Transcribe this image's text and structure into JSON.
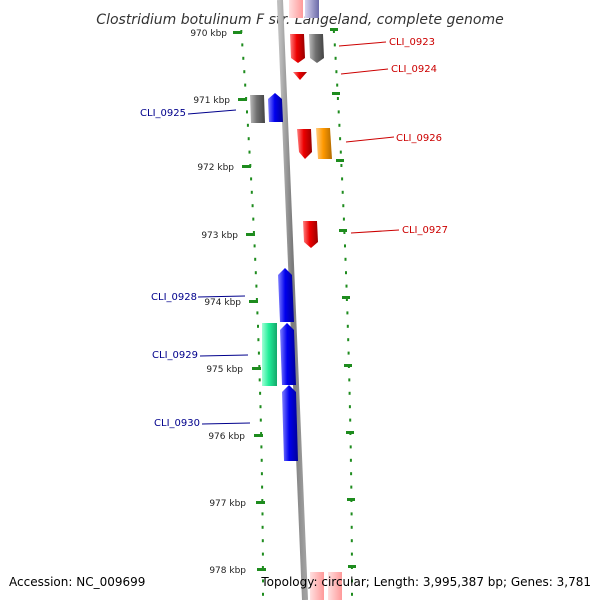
{
  "title": "Clostridium botulinum F str. Langeland, complete genome",
  "accession": "Accession: NC_009699",
  "topology": "Topology: circular; Length: 3,995,387 bp; Genes: 3,781",
  "colors": {
    "backbone": "#8c8c8c",
    "tick": "#1e8c1e",
    "label_forward": "#cc0000",
    "label_reverse": "#00008c",
    "gene_red": "#ee0000",
    "gene_blue": "#0000ee",
    "gene_gray": "#707070",
    "gene_orange": "#ff9900",
    "gene_green": "#22ee99"
  },
  "ticks": [
    {
      "label": "970 kbp"
    },
    {
      "label": "971 kbp"
    },
    {
      "label": "972 kbp"
    },
    {
      "label": "973 kbp"
    },
    {
      "label": "974 kbp"
    },
    {
      "label": "975 kbp"
    },
    {
      "label": "976 kbp"
    },
    {
      "label": "977 kbp"
    },
    {
      "label": "978 kbp"
    }
  ],
  "genes": [
    {
      "name": "CLI_0923",
      "strand": "forward",
      "color": "red"
    },
    {
      "name": "CLI_0924",
      "strand": "forward",
      "color": "red"
    },
    {
      "name": "CLI_0925",
      "strand": "reverse",
      "color": "blue"
    },
    {
      "name": "CLI_0926",
      "strand": "forward",
      "color": "red"
    },
    {
      "name": "CLI_0927",
      "strand": "forward",
      "color": "red"
    },
    {
      "name": "CLI_0928",
      "strand": "reverse",
      "color": "blue"
    },
    {
      "name": "CLI_0929",
      "strand": "reverse",
      "color": "blue"
    },
    {
      "name": "CLI_0930",
      "strand": "reverse",
      "color": "blue"
    }
  ]
}
